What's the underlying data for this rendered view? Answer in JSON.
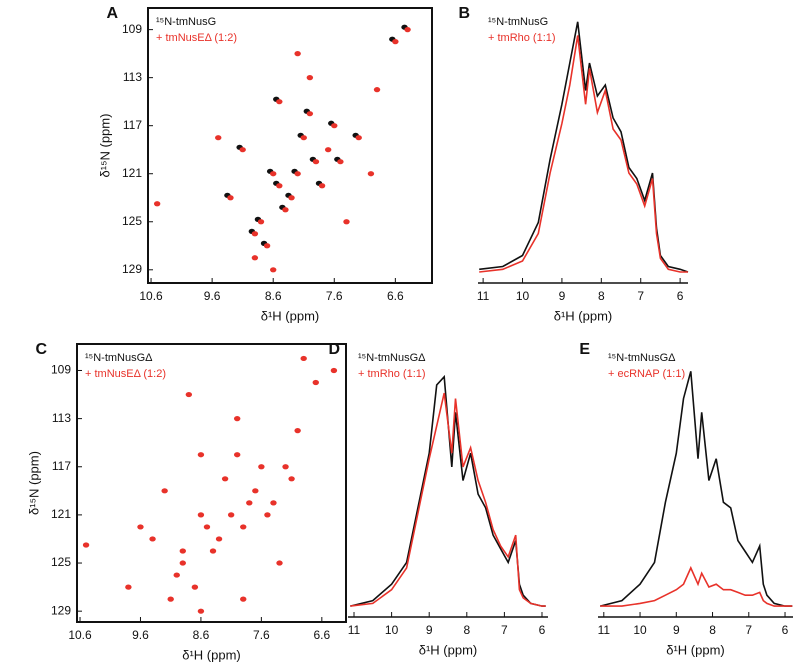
{
  "chart_data": [
    {
      "type": "scatter",
      "label": "A",
      "x_label": "δ¹H (ppm)",
      "y_label": "δ¹⁵N (ppm)",
      "xlim": [
        10.65,
        6.0
      ],
      "xticks": [
        10.6,
        9.6,
        8.6,
        7.6,
        6.6
      ],
      "ylim": [
        107.2,
        130.1
      ],
      "yticks": [
        109,
        113,
        117,
        121,
        125,
        129
      ],
      "series": [
        {
          "name": "¹⁵N-tmNusG",
          "color": "#111111",
          "x": [
            8.25,
            7.95,
            8.55,
            8.85,
            8.15,
            7.65,
            8.45,
            8.95,
            9.15,
            7.85,
            8.05,
            8.65,
            8.35,
            7.55,
            7.25,
            8.75,
            9.35,
            8.55,
            6.65,
            6.45
          ],
          "values": [
            120.8,
            119.8,
            121.8,
            124.8,
            117.8,
            116.8,
            123.8,
            125.8,
            118.8,
            121.8,
            115.8,
            120.8,
            122.8,
            119.8,
            117.8,
            126.8,
            122.8,
            114.8,
            109.8,
            108.8
          ]
        },
        {
          "name": "+ tmNusEΔ (1:2)",
          "color": "#e8322a",
          "x": [
            8.2,
            7.9,
            8.5,
            8.8,
            8.1,
            7.6,
            8.4,
            8.9,
            9.1,
            7.8,
            8.0,
            8.6,
            8.3,
            7.5,
            7.2,
            8.7,
            9.3,
            8.5,
            8.0,
            7.7,
            6.9,
            6.6,
            6.4,
            8.9,
            9.5,
            7.4,
            8.2,
            10.5,
            7.0,
            8.6
          ],
          "values": [
            121,
            120,
            122,
            125,
            118,
            117,
            124,
            126,
            119,
            122,
            116,
            121,
            123,
            120,
            118,
            127,
            123,
            115,
            113,
            119,
            114,
            110,
            109,
            128,
            118,
            125,
            111,
            123.5,
            121,
            129
          ]
        }
      ]
    },
    {
      "type": "line",
      "label": "B",
      "x_label": "δ¹H (ppm)",
      "xlim": [
        11.13,
        5.8
      ],
      "xticks": [
        11,
        10,
        9,
        8,
        7,
        6
      ],
      "ylim": [
        0,
        100
      ],
      "x": [
        11.1,
        10.5,
        10,
        9.6,
        9.3,
        9.0,
        8.8,
        8.6,
        8.4,
        8.3,
        8.1,
        7.9,
        7.7,
        7.5,
        7.3,
        7.1,
        6.9,
        6.7,
        6.6,
        6.5,
        6.3,
        6.0,
        5.8
      ],
      "series": [
        {
          "name": "¹⁵N-tmNusG",
          "color": "#111111",
          "values": [
            5,
            6,
            10,
            22,
            45,
            65,
            80,
            95,
            70,
            80,
            68,
            72,
            60,
            55,
            42,
            38,
            30,
            40,
            20,
            10,
            6,
            5,
            4
          ]
        },
        {
          "name": "+ tmRho (1:1)",
          "color": "#e8322a",
          "values": [
            4,
            5,
            8,
            18,
            40,
            58,
            72,
            90,
            65,
            78,
            62,
            70,
            56,
            52,
            40,
            36,
            28,
            38,
            18,
            9,
            5,
            4,
            4
          ]
        }
      ]
    },
    {
      "type": "scatter",
      "label": "C",
      "x_label": "δ¹H (ppm)",
      "y_label": "δ¹⁵N (ppm)",
      "xlim": [
        10.65,
        6.2
      ],
      "xticks": [
        10.6,
        9.6,
        8.6,
        7.6,
        6.6
      ],
      "ylim": [
        106.8,
        129.9
      ],
      "yticks": [
        109,
        113,
        117,
        121,
        125,
        129
      ],
      "series": [
        {
          "name": "¹⁵N-tmNusGΔ",
          "color": "#111111",
          "x": [],
          "values": []
        },
        {
          "name": "+ tmNusEΔ (1:2)",
          "color": "#e8322a",
          "x": [
            8.1,
            7.8,
            8.5,
            8.9,
            8.2,
            7.6,
            8.4,
            9.0,
            9.2,
            7.9,
            8.0,
            8.6,
            8.3,
            7.4,
            7.1,
            8.7,
            9.4,
            8.6,
            8.0,
            7.7,
            7.0,
            6.7,
            6.4,
            9.1,
            9.6,
            7.3,
            8.8,
            10.5,
            7.2,
            8.6,
            6.9,
            7.5,
            8.9,
            9.8,
            7.9
          ],
          "values": [
            121,
            120,
            122,
            125,
            118,
            117,
            124,
            126,
            119,
            122,
            116,
            121,
            123,
            120,
            118,
            127,
            123,
            116,
            113,
            119,
            114,
            110,
            109,
            128,
            122,
            125,
            111,
            123.5,
            117,
            129,
            108,
            121,
            124,
            127,
            128
          ]
        }
      ]
    },
    {
      "type": "line",
      "label": "D",
      "x_label": "δ¹H (ppm)",
      "xlim": [
        11.16,
        5.84
      ],
      "xticks": [
        11,
        10,
        9,
        8,
        7,
        6
      ],
      "ylim": [
        0,
        100
      ],
      "x": [
        11.1,
        10.5,
        10,
        9.6,
        9.3,
        9.0,
        8.8,
        8.6,
        8.4,
        8.3,
        8.1,
        7.9,
        7.7,
        7.5,
        7.3,
        7.1,
        6.9,
        6.7,
        6.6,
        6.5,
        6.3,
        6.0,
        5.9
      ],
      "series": [
        {
          "name": "¹⁵N-tmNusGΔ",
          "color": "#111111",
          "values": [
            4,
            6,
            12,
            20,
            40,
            60,
            85,
            88,
            55,
            75,
            50,
            60,
            45,
            40,
            30,
            25,
            20,
            28,
            12,
            8,
            5,
            4,
            4
          ]
        },
        {
          "name": "+ tmRho (1:1)",
          "color": "#e8322a",
          "values": [
            4,
            5,
            10,
            18,
            38,
            58,
            70,
            82,
            60,
            80,
            55,
            62,
            50,
            42,
            32,
            26,
            22,
            30,
            10,
            7,
            5,
            4,
            4
          ]
        }
      ]
    },
    {
      "type": "line",
      "label": "E",
      "x_label": "δ¹H (ppm)",
      "xlim": [
        11.16,
        5.78
      ],
      "xticks": [
        11,
        10,
        9,
        8,
        7,
        6
      ],
      "ylim": [
        0,
        100
      ],
      "x": [
        11.1,
        10.5,
        10,
        9.6,
        9.3,
        9.0,
        8.8,
        8.6,
        8.4,
        8.3,
        8.1,
        7.9,
        7.7,
        7.5,
        7.3,
        7.1,
        6.9,
        6.7,
        6.6,
        6.5,
        6.3,
        6.0,
        5.8
      ],
      "series": [
        {
          "name": "¹⁵N-tmNusGΔ",
          "color": "#111111",
          "values": [
            4,
            6,
            12,
            20,
            42,
            60,
            80,
            90,
            58,
            75,
            50,
            58,
            42,
            40,
            28,
            24,
            20,
            26,
            12,
            8,
            5,
            4,
            4
          ]
        },
        {
          "name": "+ ecRNAP (1:1)",
          "color": "#e8322a",
          "values": [
            4,
            4,
            5,
            6,
            8,
            10,
            12,
            18,
            12,
            16,
            11,
            12,
            10,
            10,
            9,
            8,
            8,
            9,
            6,
            5,
            4,
            4,
            4
          ]
        }
      ]
    }
  ]
}
